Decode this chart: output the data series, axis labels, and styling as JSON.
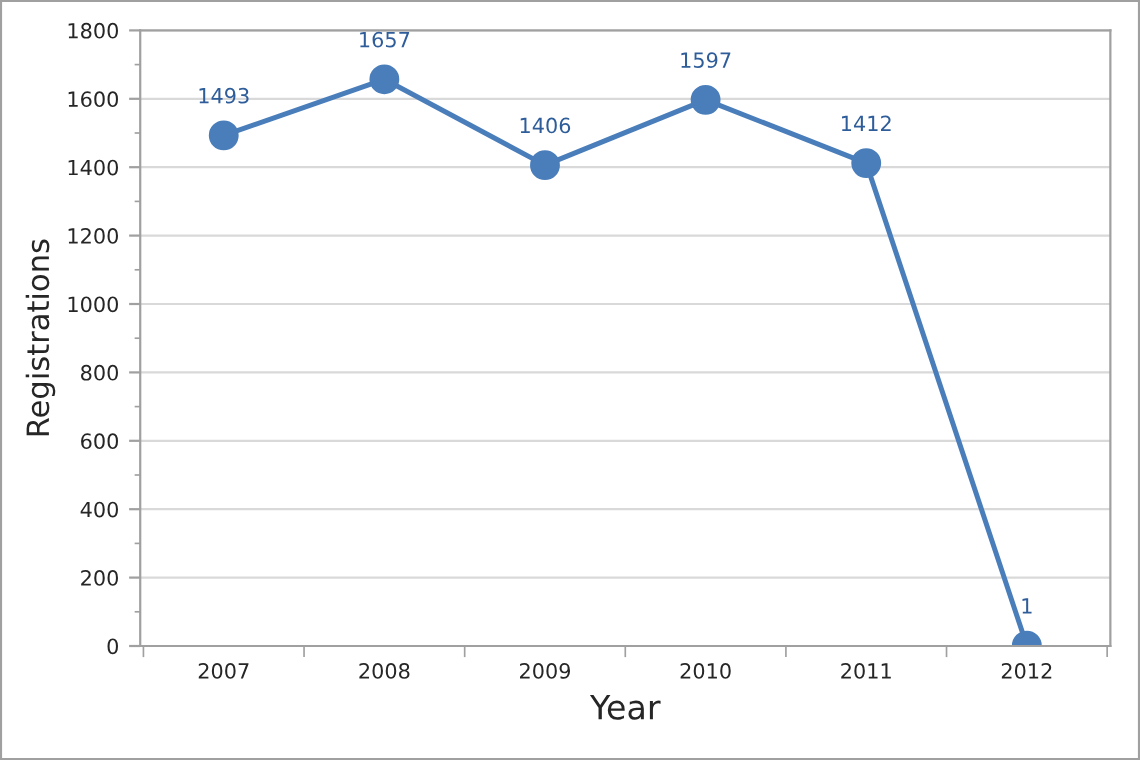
{
  "chart_data": {
    "type": "line",
    "xlabel": "Year",
    "ylabel": "Registrations",
    "categories": [
      "2007",
      "2008",
      "2009",
      "2010",
      "2011",
      "2012"
    ],
    "series": [
      {
        "color": "#4a7ebb",
        "values": [
          1493,
          1657,
          1406,
          1597,
          1412,
          1
        ]
      }
    ],
    "ylim": [
      0,
      1800
    ],
    "yticks": [
      0,
      200,
      400,
      600,
      800,
      1000,
      1200,
      1400,
      1600,
      1800
    ],
    "grid": "y",
    "marker": "circle",
    "line_style": "solid",
    "data_labels": true,
    "legend": false
  }
}
